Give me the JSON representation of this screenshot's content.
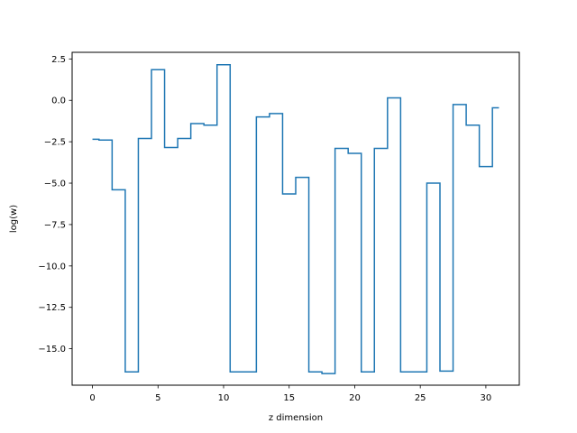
{
  "chart_data": {
    "type": "line",
    "drawstyle": "steps-mid",
    "title": "",
    "xlabel": "z dimension",
    "ylabel": "log(w)",
    "xlim": [
      -1.55,
      32.55
    ],
    "ylim": [
      -17.2,
      2.9
    ],
    "grid": false,
    "x_ticks": [
      0,
      5,
      10,
      15,
      20,
      25,
      30
    ],
    "x_tick_labels": [
      "0",
      "5",
      "10",
      "15",
      "20",
      "25",
      "30"
    ],
    "y_ticks": [
      2.5,
      0,
      -2.5,
      -5,
      -7.5,
      -10,
      -12.5,
      -15
    ],
    "y_tick_labels": [
      "2.5",
      "0.0",
      "−2.5",
      "−5.0",
      "−7.5",
      "−10.0",
      "−12.5",
      "−15.0"
    ],
    "series": [
      {
        "color": "#1f77b4",
        "x": [
          0,
          1,
          2,
          3,
          4,
          5,
          6,
          7,
          8,
          9,
          10,
          11,
          12,
          13,
          14,
          15,
          16,
          17,
          18,
          19,
          20,
          21,
          22,
          23,
          24,
          25,
          26,
          27,
          28,
          29,
          30,
          31
        ],
        "values": [
          -2.35,
          -2.4,
          -5.4,
          -16.4,
          -2.3,
          1.85,
          -2.85,
          -2.3,
          -1.4,
          -1.5,
          2.15,
          -16.4,
          -16.4,
          -1.0,
          -0.8,
          -5.65,
          -4.65,
          -16.4,
          -16.5,
          -2.9,
          -3.2,
          -16.4,
          -2.9,
          0.15,
          -16.4,
          -16.4,
          -5.0,
          -16.35,
          -0.25,
          -1.5,
          -4.0,
          -0.45
        ]
      }
    ]
  }
}
